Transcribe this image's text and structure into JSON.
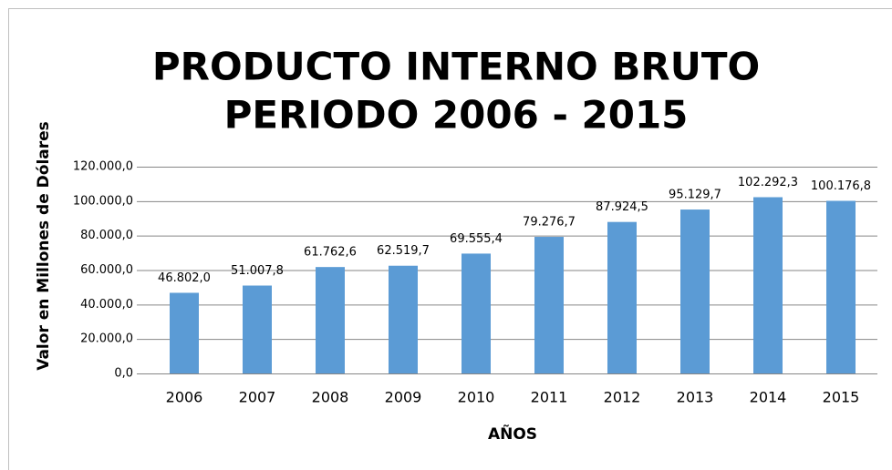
{
  "chart_data": {
    "type": "bar",
    "title": [
      "PRODUCTO INTERNO BRUTO",
      "PERIODO 2006 - 2015"
    ],
    "x_label": "AÑOS",
    "y_label": "Valor en Millones de Dólares",
    "categories": [
      "2006",
      "2007",
      "2008",
      "2009",
      "2010",
      "2011",
      "2012",
      "2013",
      "2014",
      "2015"
    ],
    "values": [
      46802.0,
      51007.8,
      61762.6,
      62519.7,
      69555.4,
      79276.7,
      87924.5,
      95129.7,
      102292.3,
      100176.8
    ],
    "value_labels": [
      "46.802,0",
      "51.007,8",
      "61.762,6",
      "62.519,7",
      "69.555,4",
      "79.276,7",
      "87.924,5",
      "95.129,7",
      "102.292,3",
      "100.176,8"
    ],
    "color": "#5b9bd5",
    "ylim": [
      0,
      120000
    ],
    "yticks": [
      {
        "value": 0,
        "label": "0,0"
      },
      {
        "value": 20000,
        "label": "20.000,0"
      },
      {
        "value": 40000,
        "label": "40.000,0"
      },
      {
        "value": 60000,
        "label": "60.000,0"
      },
      {
        "value": 80000,
        "label": "80.000,0"
      },
      {
        "value": 100000,
        "label": "100.000,0"
      },
      {
        "value": 120000,
        "label": "120.000,0"
      }
    ],
    "grid": true
  }
}
